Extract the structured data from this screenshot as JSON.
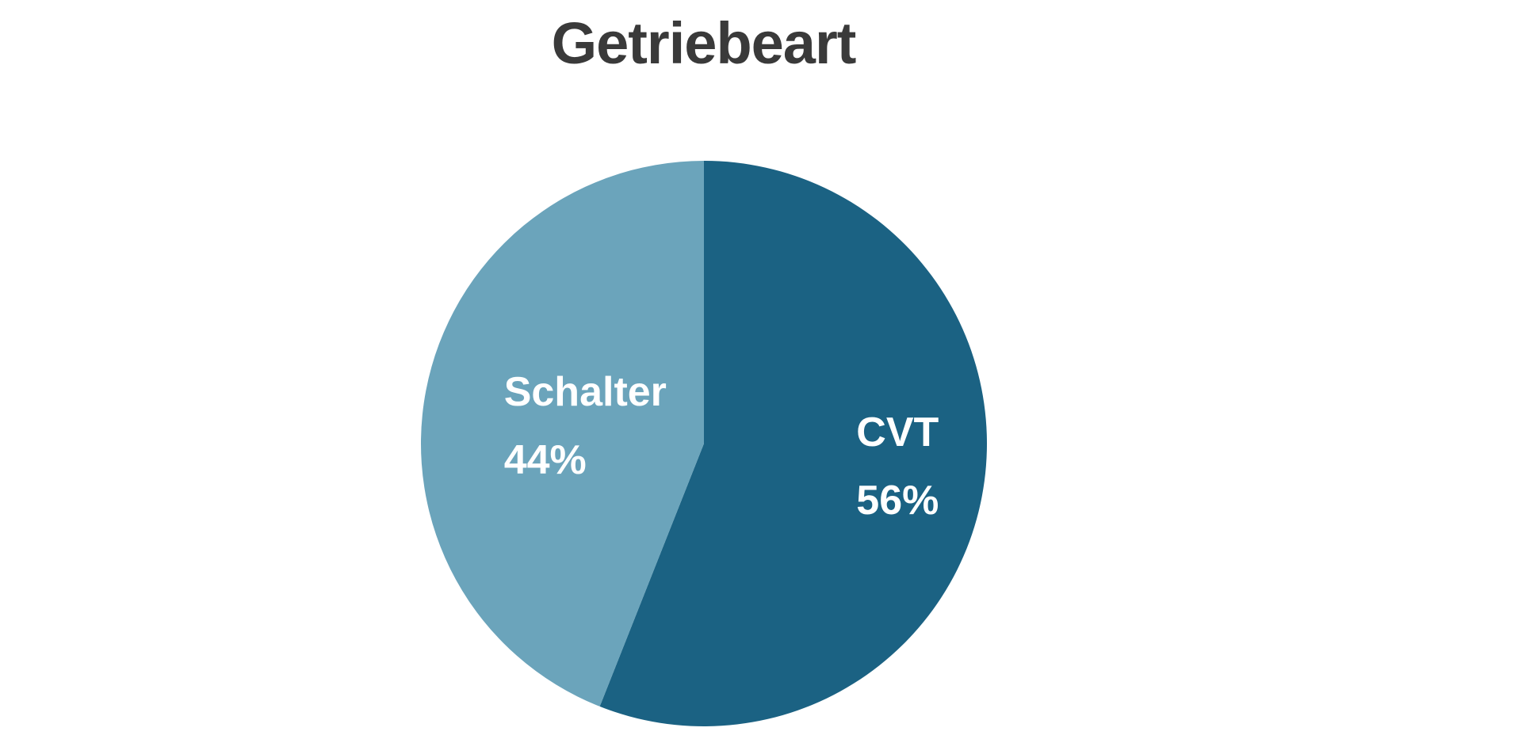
{
  "chart_data": {
    "type": "pie",
    "title": "Getriebeart",
    "slices": [
      {
        "label": "CVT",
        "value": 56,
        "value_label": "56%",
        "color": "#1b6283"
      },
      {
        "label": "Schalter",
        "value": 44,
        "value_label": "44%",
        "color": "#6ba4bb"
      }
    ],
    "start": "12 o'clock",
    "direction": "clockwise",
    "legend": "none"
  }
}
